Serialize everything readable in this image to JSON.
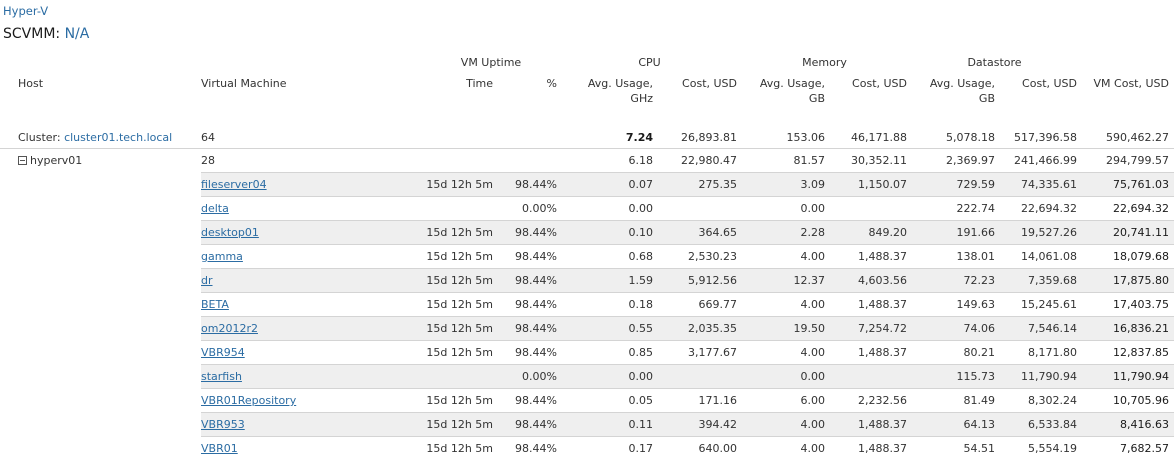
{
  "breadcrumb": "Hyper-V",
  "title": {
    "label": "SCVMM:",
    "value": "N/A"
  },
  "groups": {
    "uptime": "VM Uptime",
    "cpu": "CPU",
    "memory": "Memory",
    "datastore": "Datastore"
  },
  "columns": {
    "host": "Host",
    "vm": "Virtual Machine",
    "time": "Time",
    "pct": "%",
    "cpu_avg": "Avg. Usage, GHz",
    "cpu_cost": "Cost, USD",
    "mem_avg": "Avg. Usage, GB",
    "mem_cost": "Cost, USD",
    "ds_avg": "Avg. Usage, GB",
    "ds_cost": "Cost, USD",
    "vm_cost": "VM Cost, USD"
  },
  "cluster": {
    "label": "Cluster:",
    "name": "cluster01.tech.local",
    "vm_count": "64",
    "cpu_avg": "7.24",
    "cpu_cost": "26,893.81",
    "mem_avg": "153.06",
    "mem_cost": "46,171.88",
    "ds_avg": "5,078.18",
    "ds_cost": "517,396.58",
    "vm_cost": "590,462.27"
  },
  "host": {
    "name": "hyperv01",
    "vm_count": "28",
    "cpu_avg": "6.18",
    "cpu_cost": "22,980.47",
    "mem_avg": "81.57",
    "mem_cost": "30,352.11",
    "ds_avg": "2,369.97",
    "ds_cost": "241,466.99",
    "vm_cost": "294,799.57"
  },
  "vms": [
    {
      "name": "fileserver04",
      "time": "15d 12h 5m",
      "pct": "98.44%",
      "cpu_avg": "0.07",
      "cpu_cost": "275.35",
      "mem_avg": "3.09",
      "mem_cost": "1,150.07",
      "ds_avg": "729.59",
      "ds_cost": "74,335.61",
      "vm_cost": "75,761.03"
    },
    {
      "name": "delta",
      "time": "",
      "pct": "0.00%",
      "cpu_avg": "0.00",
      "cpu_cost": "",
      "mem_avg": "0.00",
      "mem_cost": "",
      "ds_avg": "222.74",
      "ds_cost": "22,694.32",
      "vm_cost": "22,694.32"
    },
    {
      "name": "desktop01",
      "time": "15d 12h 5m",
      "pct": "98.44%",
      "cpu_avg": "0.10",
      "cpu_cost": "364.65",
      "mem_avg": "2.28",
      "mem_cost": "849.20",
      "ds_avg": "191.66",
      "ds_cost": "19,527.26",
      "vm_cost": "20,741.11"
    },
    {
      "name": "gamma",
      "time": "15d 12h 5m",
      "pct": "98.44%",
      "cpu_avg": "0.68",
      "cpu_cost": "2,530.23",
      "mem_avg": "4.00",
      "mem_cost": "1,488.37",
      "ds_avg": "138.01",
      "ds_cost": "14,061.08",
      "vm_cost": "18,079.68"
    },
    {
      "name": "dr",
      "time": "15d 12h 5m",
      "pct": "98.44%",
      "cpu_avg": "1.59",
      "cpu_cost": "5,912.56",
      "mem_avg": "12.37",
      "mem_cost": "4,603.56",
      "ds_avg": "72.23",
      "ds_cost": "7,359.68",
      "vm_cost": "17,875.80"
    },
    {
      "name": "BETA",
      "time": "15d 12h 5m",
      "pct": "98.44%",
      "cpu_avg": "0.18",
      "cpu_cost": "669.77",
      "mem_avg": "4.00",
      "mem_cost": "1,488.37",
      "ds_avg": "149.63",
      "ds_cost": "15,245.61",
      "vm_cost": "17,403.75"
    },
    {
      "name": "om2012r2",
      "time": "15d 12h 5m",
      "pct": "98.44%",
      "cpu_avg": "0.55",
      "cpu_cost": "2,035.35",
      "mem_avg": "19.50",
      "mem_cost": "7,254.72",
      "ds_avg": "74.06",
      "ds_cost": "7,546.14",
      "vm_cost": "16,836.21"
    },
    {
      "name": "VBR954",
      "time": "15d 12h 5m",
      "pct": "98.44%",
      "cpu_avg": "0.85",
      "cpu_cost": "3,177.67",
      "mem_avg": "4.00",
      "mem_cost": "1,488.37",
      "ds_avg": "80.21",
      "ds_cost": "8,171.80",
      "vm_cost": "12,837.85"
    },
    {
      "name": "starfish",
      "time": "",
      "pct": "0.00%",
      "cpu_avg": "0.00",
      "cpu_cost": "",
      "mem_avg": "0.00",
      "mem_cost": "",
      "ds_avg": "115.73",
      "ds_cost": "11,790.94",
      "vm_cost": "11,790.94"
    },
    {
      "name": "VBR01Repository",
      "time": "15d 12h 5m",
      "pct": "98.44%",
      "cpu_avg": "0.05",
      "cpu_cost": "171.16",
      "mem_avg": "6.00",
      "mem_cost": "2,232.56",
      "ds_avg": "81.49",
      "ds_cost": "8,302.24",
      "vm_cost": "10,705.96"
    },
    {
      "name": "VBR953",
      "time": "15d 12h 5m",
      "pct": "98.44%",
      "cpu_avg": "0.11",
      "cpu_cost": "394.42",
      "mem_avg": "4.00",
      "mem_cost": "1,488.37",
      "ds_avg": "64.13",
      "ds_cost": "6,533.84",
      "vm_cost": "8,416.63"
    },
    {
      "name": "VBR01",
      "time": "15d 12h 5m",
      "pct": "98.44%",
      "cpu_avg": "0.17",
      "cpu_cost": "640.00",
      "mem_avg": "4.00",
      "mem_cost": "1,488.37",
      "ds_avg": "54.51",
      "ds_cost": "5,554.19",
      "vm_cost": "7,682.57"
    }
  ]
}
